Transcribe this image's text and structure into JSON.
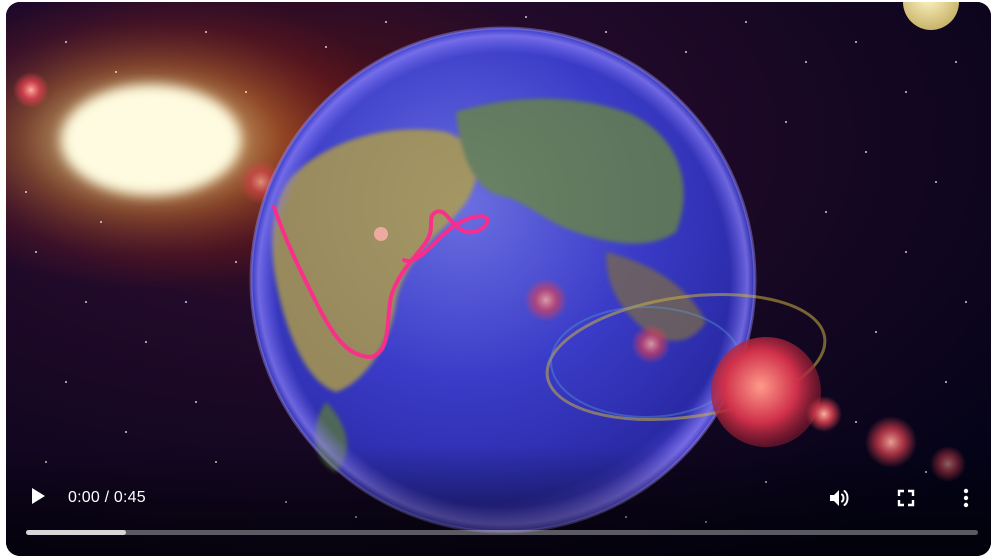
{
  "player": {
    "time_display": "0:00 / 0:45",
    "buffered_fraction": 0.105,
    "icons": {
      "play": "play-icon",
      "volume": "volume-icon",
      "fullscreen": "fullscreen-icon",
      "more": "more-vert-icon"
    }
  }
}
